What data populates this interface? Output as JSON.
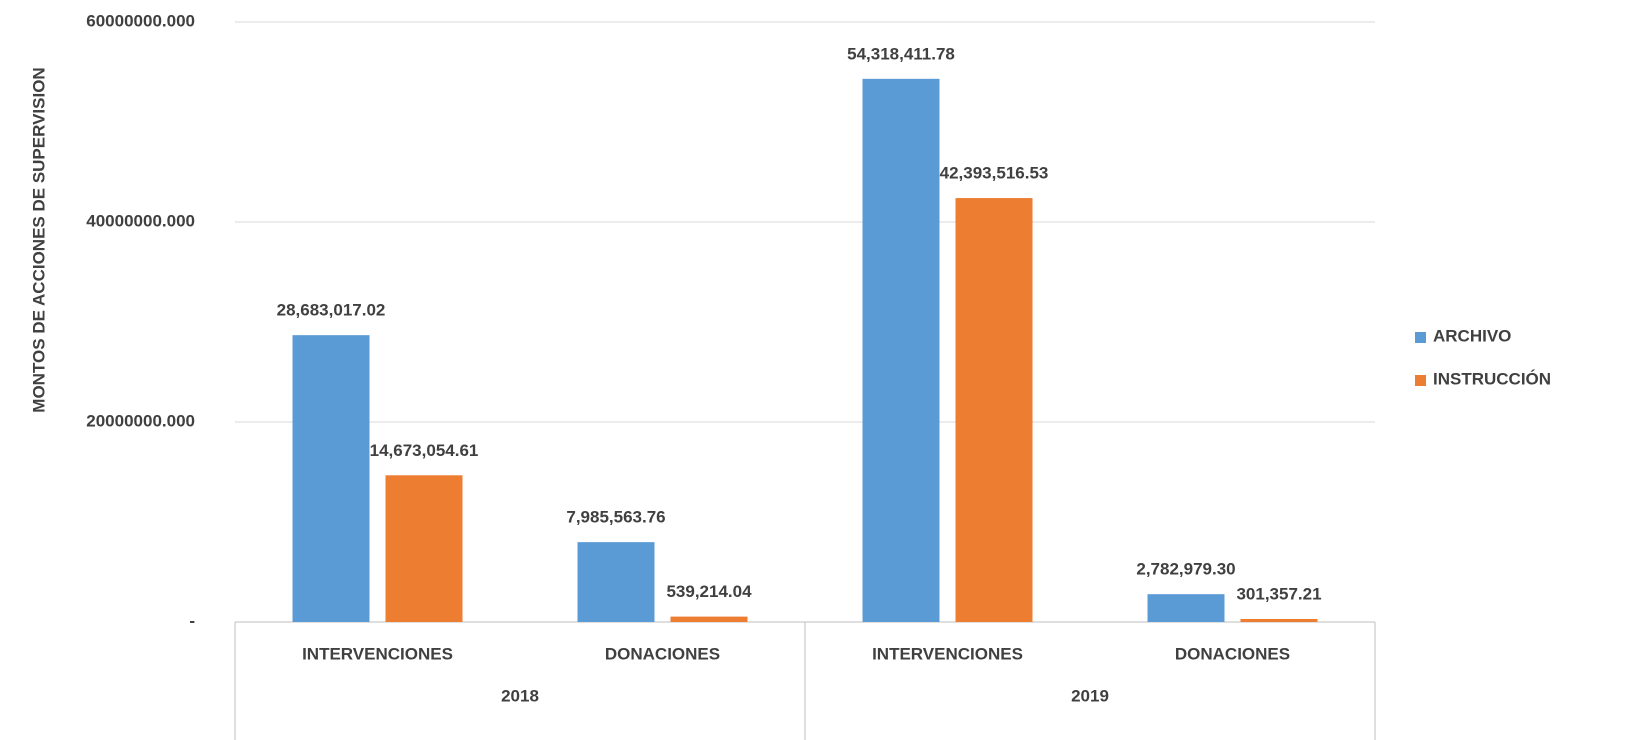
{
  "chart_data": {
    "type": "bar",
    "ylabel": "MONTOS DE ACCIONES DE SUPERVISION",
    "categories": [
      "INTERVENCIONES",
      "DONACIONES",
      "INTERVENCIONES",
      "DONACIONES"
    ],
    "groups": [
      "2018",
      "2019"
    ],
    "series": [
      {
        "name": "ARCHIVO",
        "color": "#5b9bd5",
        "values": [
          28683017.02,
          7985563.76,
          54318411.78,
          2782979.3
        ],
        "value_labels": [
          "28,683,017.02",
          "7,985,563.76",
          "54,318,411.78",
          "2,782,979.30"
        ]
      },
      {
        "name": "INSTRUCCIÓN",
        "color": "#ed7d31",
        "values": [
          14673054.61,
          539214.04,
          42393516.53,
          301357.21
        ],
        "value_labels": [
          "14,673,054.61",
          "539,214.04",
          "42,393,516.53",
          "301,357.21"
        ]
      }
    ],
    "ylim": [
      0,
      60000000
    ],
    "yticks": [
      {
        "value": 0,
        "label": "-"
      },
      {
        "value": 20000000,
        "label": "20000000.000"
      },
      {
        "value": 40000000,
        "label": "40000000.000"
      },
      {
        "value": 60000000,
        "label": "60000000.000"
      }
    ],
    "grid": true,
    "legend": "right"
  }
}
